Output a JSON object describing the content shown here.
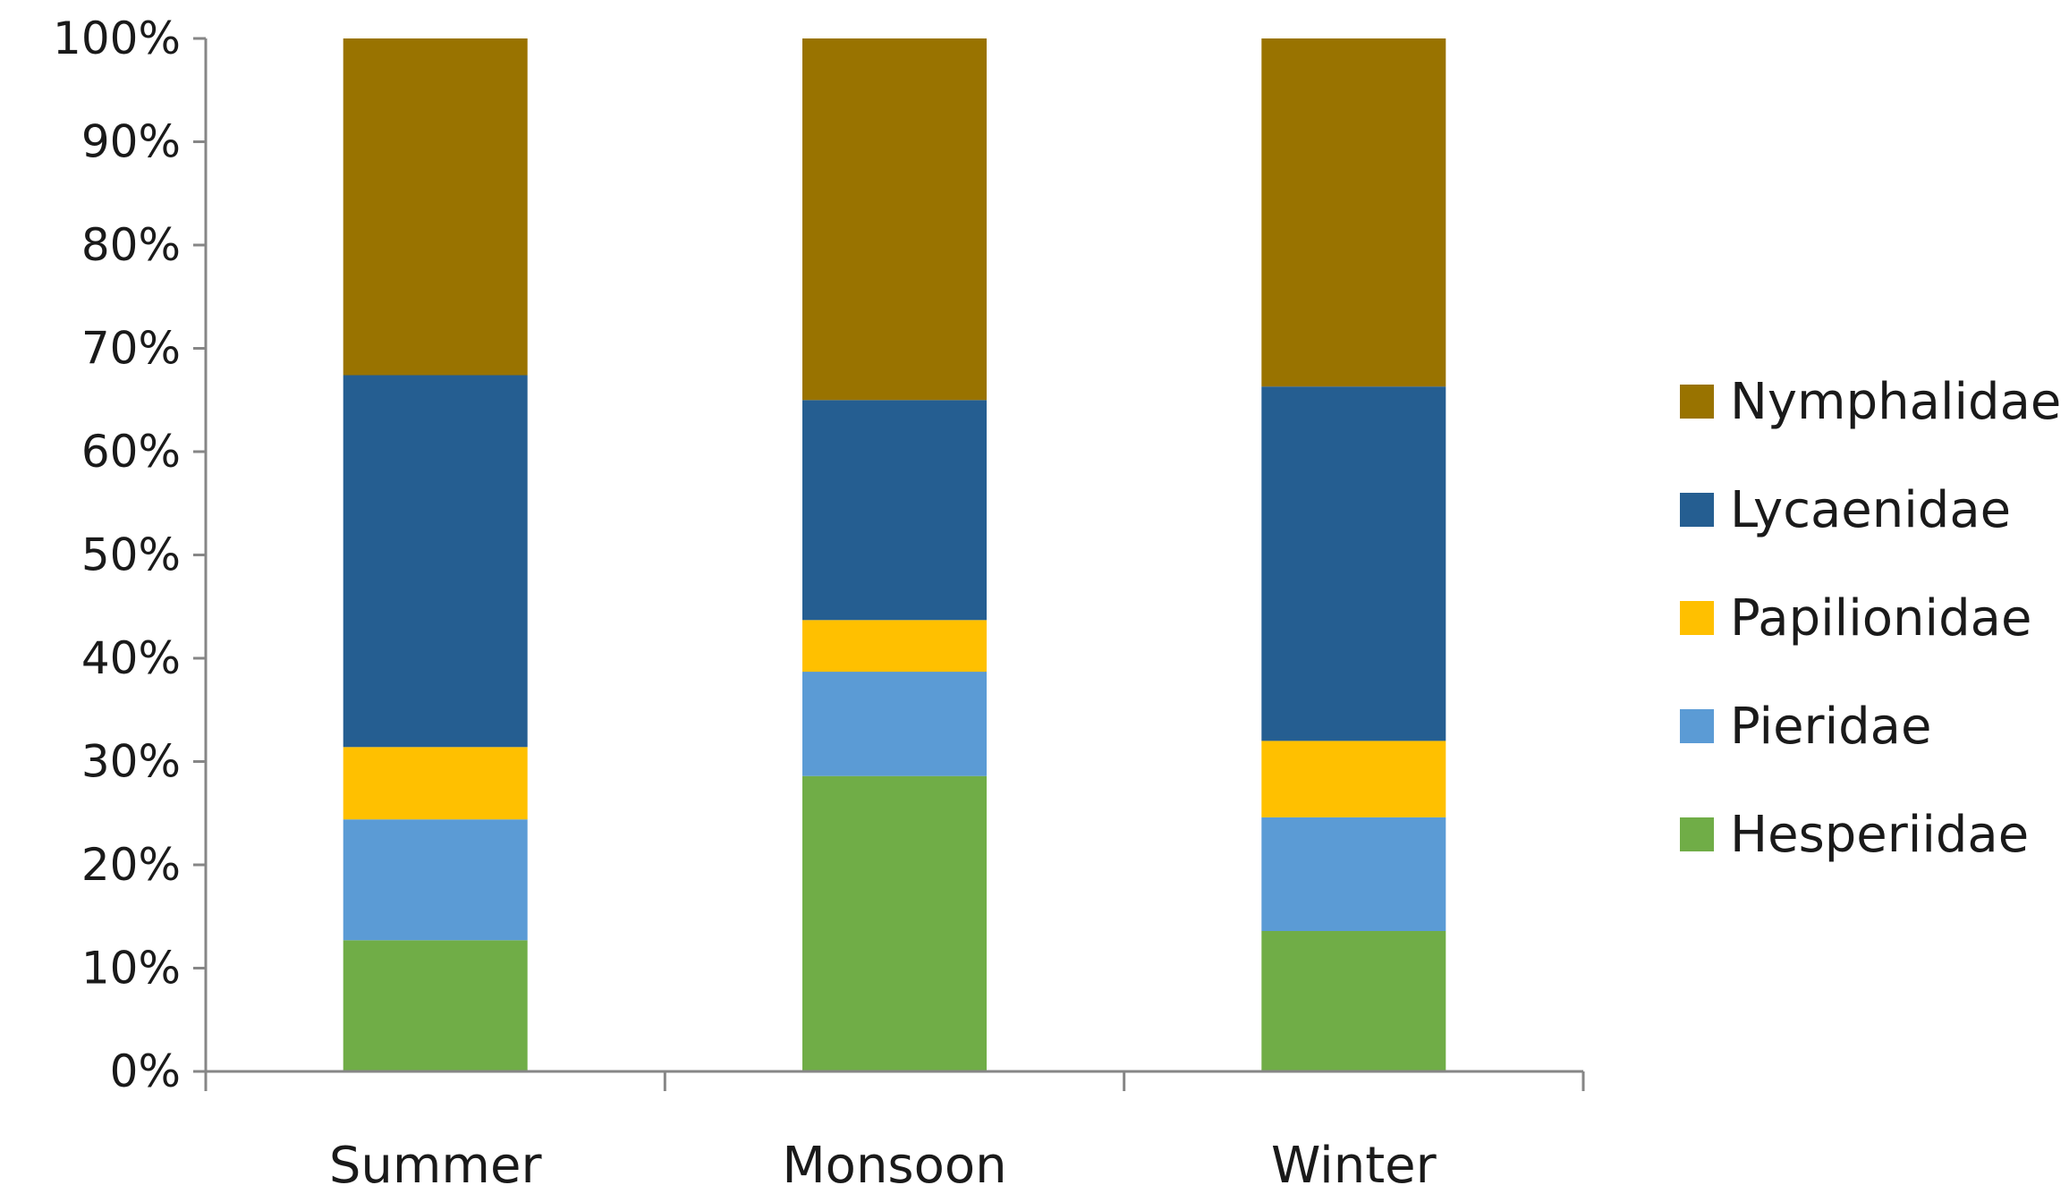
{
  "chart_data": {
    "type": "bar",
    "stacked": true,
    "normalized": true,
    "title": "",
    "xlabel": "",
    "ylabel": "",
    "ylim": [
      0,
      100
    ],
    "y_ticks": [
      "0%",
      "10%",
      "20%",
      "30%",
      "40%",
      "50%",
      "60%",
      "70%",
      "80%",
      "90%",
      "100%"
    ],
    "grid": false,
    "legend_position": "right",
    "categories": [
      "Summer",
      "Monsoon",
      "Winter"
    ],
    "series": [
      {
        "name": "Hesperiidae",
        "color": "#70AD47",
        "values": [
          12.7,
          28.6,
          13.6
        ]
      },
      {
        "name": "Pieridae",
        "color": "#5B9BD5",
        "values": [
          11.7,
          10.1,
          11.0
        ]
      },
      {
        "name": "Papilionidae",
        "color": "#FFC000",
        "values": [
          7.0,
          5.0,
          7.4
        ]
      },
      {
        "name": "Lycaenidae",
        "color": "#255E91",
        "values": [
          36.0,
          21.3,
          34.3
        ]
      },
      {
        "name": "Nymphalidae",
        "color": "#997300",
        "values": [
          32.6,
          35.0,
          33.7
        ]
      }
    ],
    "legend_order": [
      "Nymphalidae",
      "Lycaenidae",
      "Papilionidae",
      "Pieridae",
      "Hesperiidae"
    ]
  }
}
